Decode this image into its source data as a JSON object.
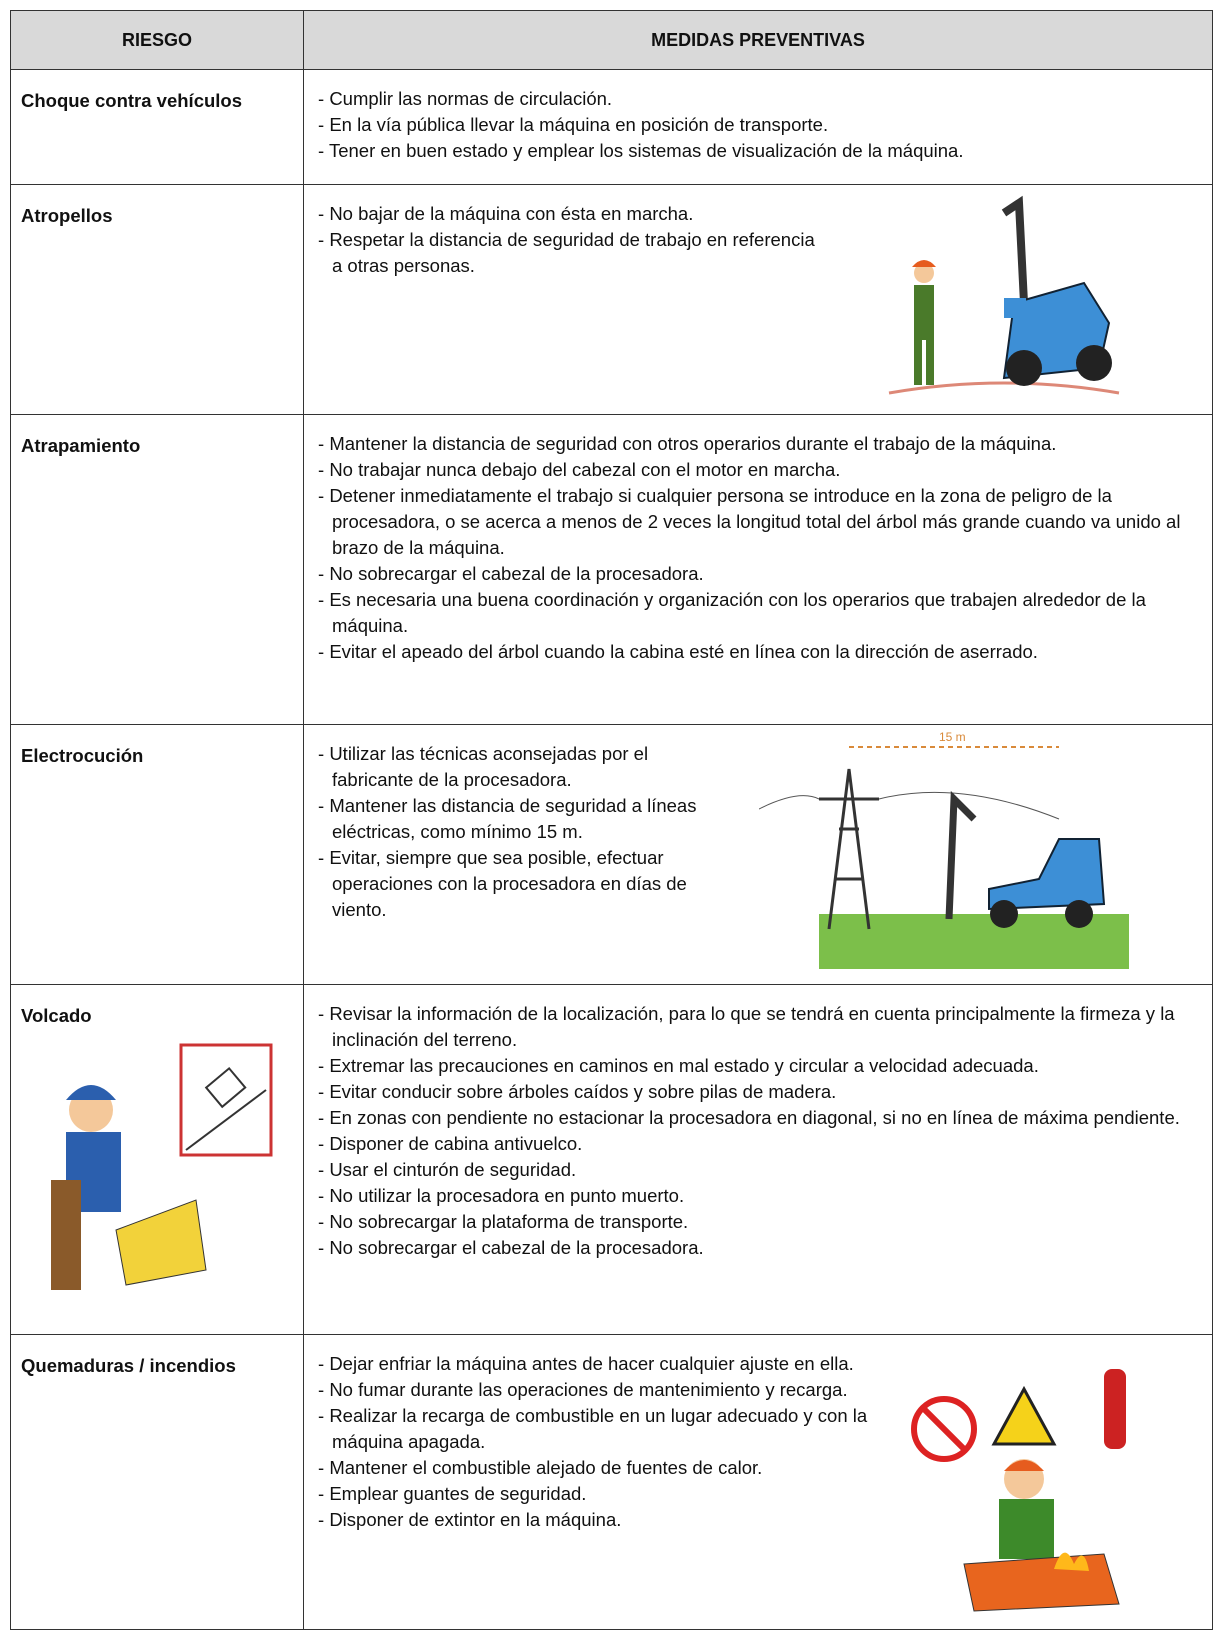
{
  "table": {
    "header": [
      "RIESGO",
      "MEDIDAS PREVENTIVAS"
    ],
    "rows": [
      {
        "risk": "Choque contra vehículos",
        "measures": [
          "Cumplir las normas de circulación.",
          "En la vía pública llevar la máquina en posición de transporte.",
          "Tener en buen estado y emplear los sistemas de visualización de la máquina."
        ]
      },
      {
        "risk": "Atropellos",
        "measures": [
          "No bajar de la máquina con ésta en marcha.",
          "Respetar la distancia de seguridad de trabajo en referencia a otras personas."
        ]
      },
      {
        "risk": "Atrapamiento",
        "measures": [
          "Mantener la distancia de seguridad con otros operarios durante el trabajo de la máquina.",
          "No trabajar nunca debajo del cabezal con el motor en marcha.",
          "Detener inmediatamente el trabajo si cualquier persona se introduce en la zona de peligro de la procesadora, o se acerca a menos de 2 veces la longitud total del árbol más grande cuando va unido al brazo de la máquina.",
          "No sobrecargar el cabezal de la procesadora.",
          "Es necesaria una buena coordinación y organización con los operarios que trabajen alrededor de la máquina.",
          "Evitar el apeado del árbol cuando la cabina esté en línea con la dirección de aserrado."
        ]
      },
      {
        "risk": "Electrocución",
        "measures": [
          "Utilizar las técnicas aconsejadas por el fabricante de la procesadora.",
          "Mantener las distancia de seguridad a líneas eléctricas, como mínimo 15 m.",
          "Evitar, siempre que sea posible, efectuar operaciones con la procesadora en días de viento."
        ],
        "figure_label": "15 m"
      },
      {
        "risk": "Volcado",
        "measures": [
          "Revisar la información de la localización, para lo que se tendrá en cuenta principalmente la firmeza y la inclinación del terreno.",
          "Extremar las precauciones en caminos en mal estado y circular a velocidad adecuada.",
          "Evitar conducir sobre árboles caídos y sobre pilas de madera.",
          "En zonas con pendiente no estacionar la procesadora en diagonal, si no en línea de máxima pendiente.",
          "Disponer de cabina antivuelco.",
          "Usar el cinturón de seguridad.",
          "No utilizar la procesadora en punto muerto.",
          "No sobrecargar la plataforma de transporte.",
          "No sobrecargar el cabezal de la procesadora."
        ]
      },
      {
        "risk": "Quemaduras / incendios",
        "measures": [
          "Dejar enfriar la máquina antes de hacer cualquier ajuste en ella.",
          "No fumar durante las operaciones de mantenimiento y recarga.",
          "Realizar la recarga de combustible en un lugar adecuado y con la máquina apagada.",
          "Mantener el combustible alejado de fuentes de calor.",
          "Emplear guantes de seguridad.",
          "Disponer de extintor en la máquina."
        ]
      }
    ]
  }
}
